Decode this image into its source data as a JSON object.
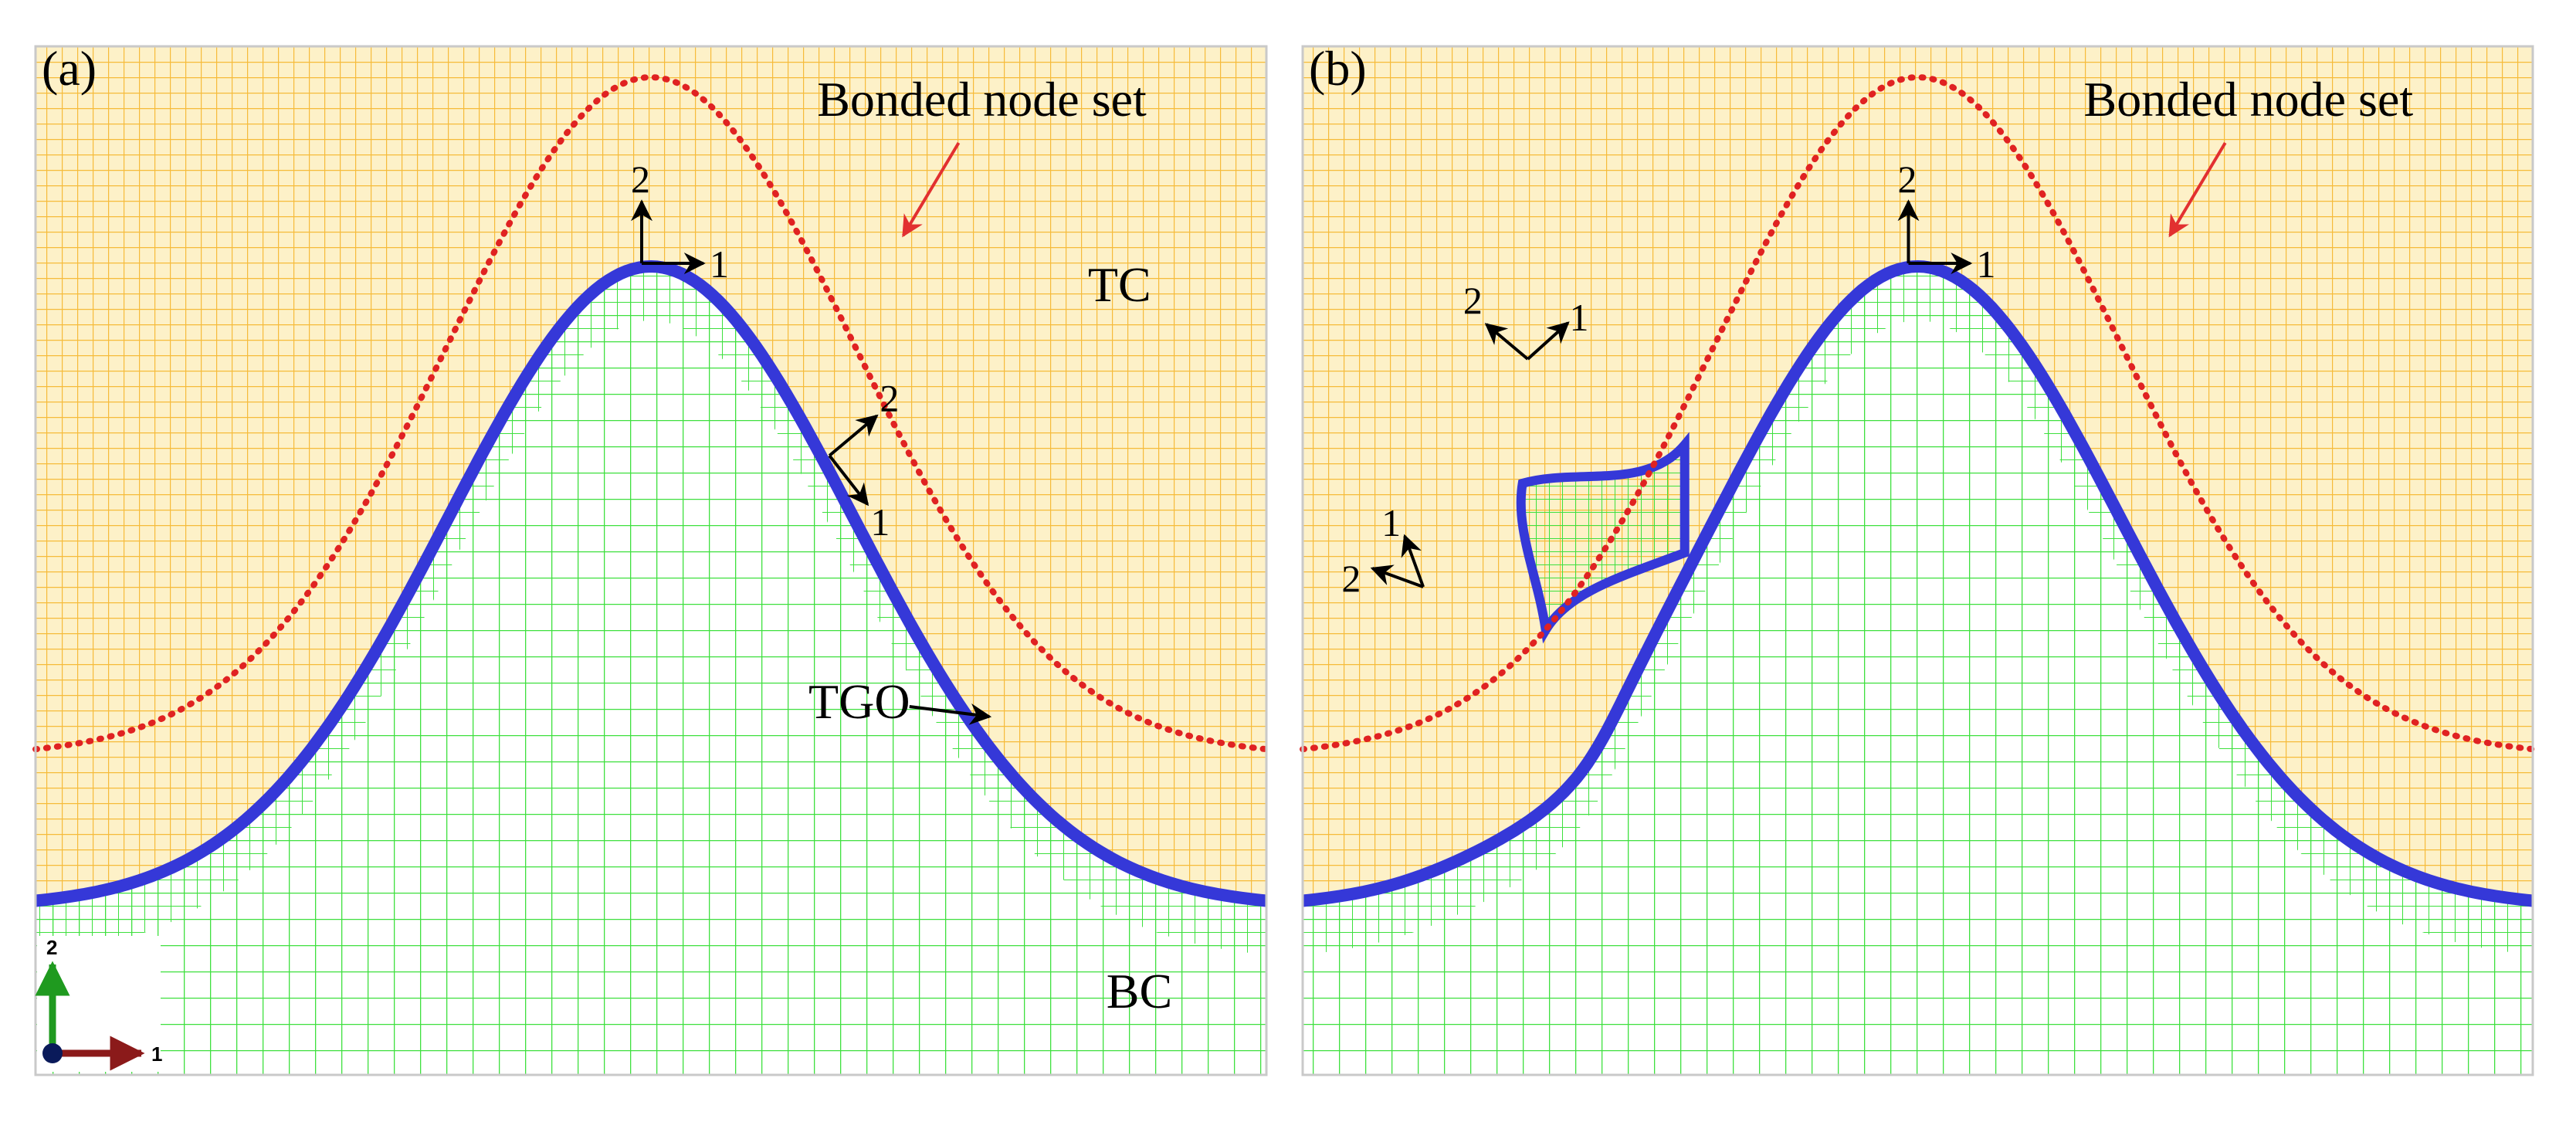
{
  "figure": {
    "colors": {
      "tc_mesh": "#f5b52a",
      "tc_fill": "#fdf1c8",
      "bc_mesh": "#3ee03e",
      "tgo": "#3538d8",
      "node_set": "#e02222",
      "arrow_red": "#e23030",
      "frame": "#c9c9c9",
      "triad_x": "#8b1a1a",
      "triad_y": "#1f9a1f",
      "triad_origin": "#0a1a5a"
    },
    "panels": [
      {
        "tag": "(a)",
        "bonded_label": "Bonded node set",
        "region_tc": "TC",
        "region_bc": "BC",
        "tgo_label": "TGO",
        "has_defect": false,
        "local_axes": [
          {
            "d1": "1",
            "d2": "2"
          },
          {
            "d1": "1",
            "d2": "2"
          }
        ]
      },
      {
        "tag": "(b)",
        "bonded_label": "Bonded node set",
        "has_defect": true,
        "local_axes": [
          {
            "d1": "1",
            "d2": "2"
          },
          {
            "d1": "1",
            "d2": "2"
          },
          {
            "d1": "1",
            "d2": "2"
          }
        ]
      }
    ],
    "global_triad": {
      "axis_x": "1",
      "axis_y": "2",
      "icon": "coordinate-triad-icon"
    }
  }
}
